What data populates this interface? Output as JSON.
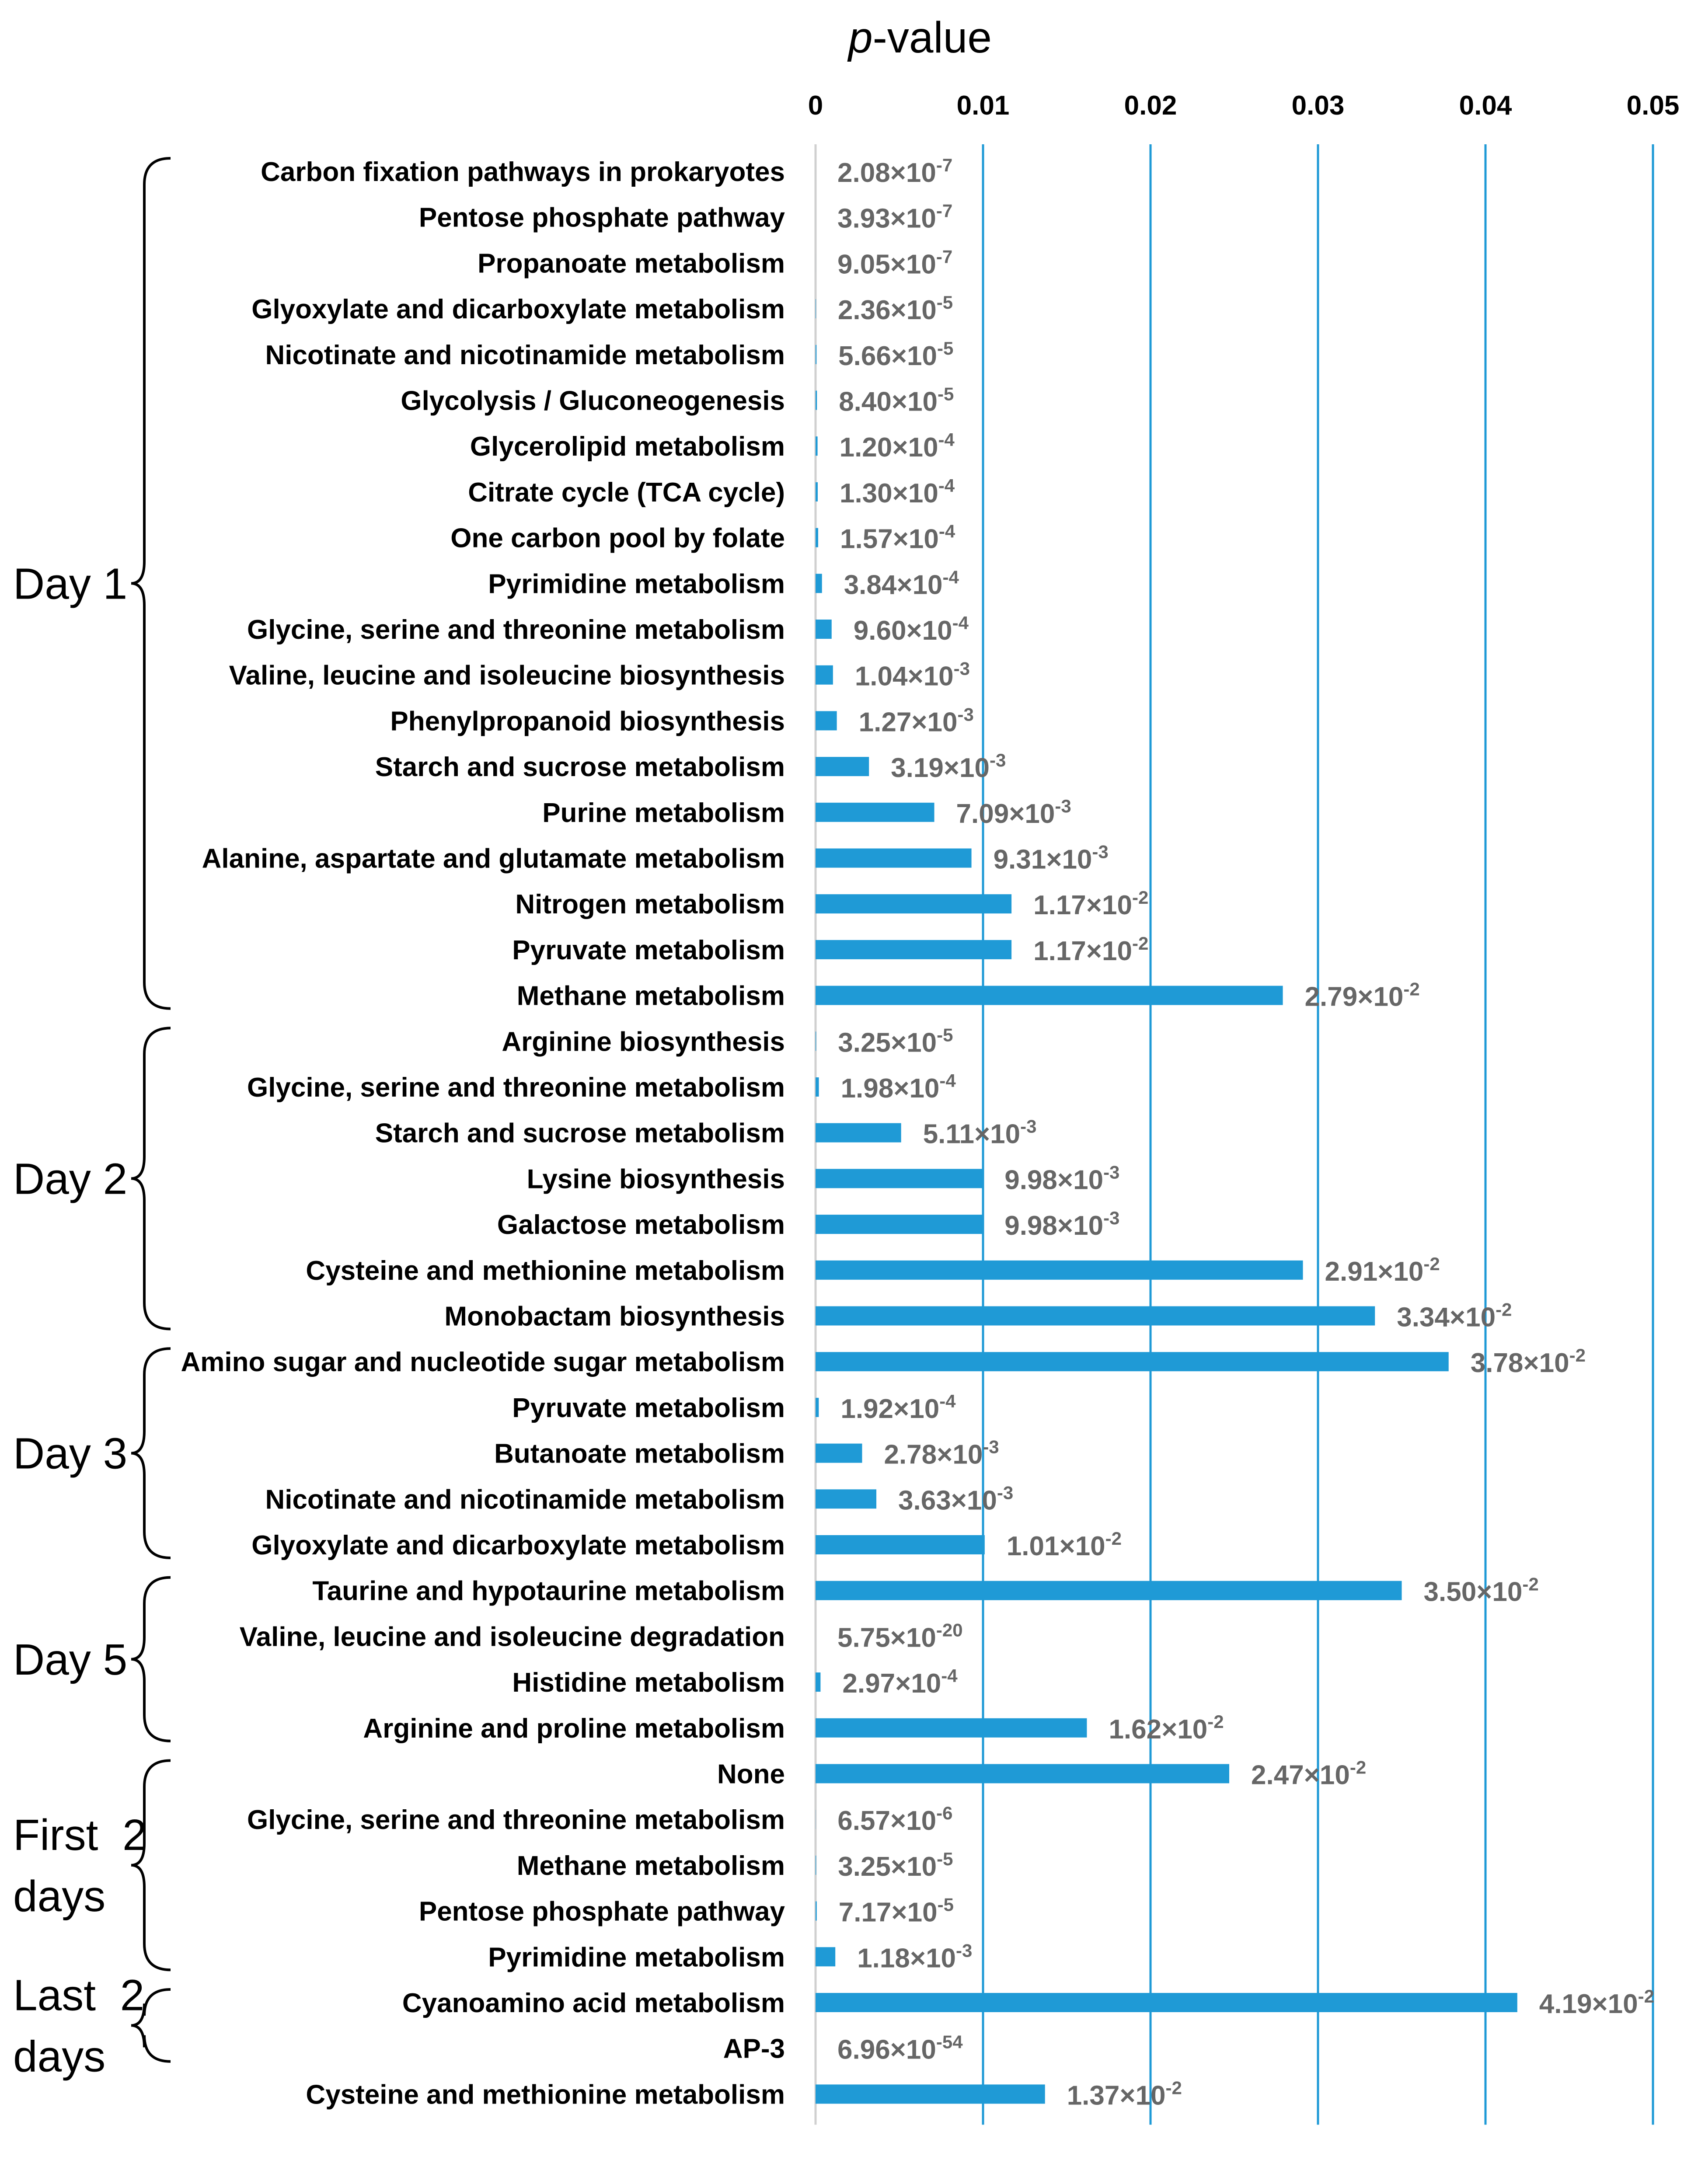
{
  "chart_data": {
    "type": "bar",
    "orientation": "horizontal",
    "title": "",
    "xlabel": "p-value",
    "xlabel_italic": "p",
    "xlabel_rest": "-value",
    "xlim": [
      0,
      0.05
    ],
    "xticks": [
      0,
      0.01,
      0.02,
      0.03,
      0.04,
      0.05
    ],
    "xtick_labels": [
      "0",
      "0.01",
      "0.02",
      "0.03",
      "0.04",
      "0.05"
    ],
    "grid": "vertical",
    "bar_color": "#1f9ad6",
    "grid_color": "#1f9ad6",
    "label_color": "#666666",
    "groups": [
      {
        "label_lines": [
          "Day 1"
        ],
        "start": 0,
        "end": 18
      },
      {
        "label_lines": [
          "Day 2"
        ],
        "start": 19,
        "end": 25
      },
      {
        "label_lines": [
          "Day 3"
        ],
        "start": 26,
        "end": 30
      },
      {
        "label_lines": [
          "Day 5"
        ],
        "start": 31,
        "end": 34
      },
      {
        "label_lines": [
          "First  2",
          "days"
        ],
        "start": 35,
        "end": 39
      },
      {
        "label_lines": [
          "Last  2",
          "days"
        ],
        "start": 40,
        "end": 41
      }
    ],
    "categories": [
      "Carbon fixation pathways in prokaryotes",
      "Pentose phosphate pathway",
      "Propanoate metabolism",
      "Glyoxylate and dicarboxylate metabolism",
      "Nicotinate and nicotinamide metabolism",
      "Glycolysis / Gluconeogenesis",
      "Glycerolipid metabolism",
      "Citrate cycle (TCA cycle)",
      "One carbon pool by folate",
      "Pyrimidine metabolism",
      "Glycine, serine and threonine metabolism",
      "Valine, leucine and isoleucine biosynthesis",
      "Phenylpropanoid biosynthesis",
      "Starch and sucrose metabolism",
      "Purine metabolism",
      "Alanine, aspartate and glutamate metabolism",
      "Nitrogen metabolism",
      "Pyruvate metabolism",
      "Methane metabolism",
      "Arginine biosynthesis",
      "Glycine, serine and threonine metabolism",
      "Starch and sucrose metabolism",
      "Lysine biosynthesis",
      "Galactose metabolism",
      "Cysteine and methionine metabolism",
      "Monobactam biosynthesis",
      "Amino sugar and nucleotide sugar metabolism",
      "Pyruvate metabolism",
      "Butanoate metabolism",
      "Nicotinate and nicotinamide metabolism",
      "Glyoxylate and dicarboxylate metabolism",
      "Taurine and hypotaurine metabolism",
      "Valine, leucine and isoleucine degradation",
      "Histidine metabolism",
      "Arginine and proline metabolism",
      "None",
      "Glycine, serine and threonine metabolism",
      "Methane metabolism",
      "Pentose phosphate pathway",
      "Pyrimidine metabolism",
      "Cyanoamino acid metabolism",
      "AP-3",
      "Cysteine and methionine metabolism"
    ],
    "values": [
      2.08e-07,
      3.93e-07,
      9.05e-07,
      2.36e-05,
      5.66e-05,
      8.4e-05,
      0.00012,
      0.00013,
      0.000157,
      0.000384,
      0.00096,
      0.00104,
      0.00127,
      0.00319,
      0.00709,
      0.00931,
      0.0117,
      0.0117,
      0.0279,
      3.25e-05,
      0.000198,
      0.00511,
      0.00998,
      0.00998,
      0.0291,
      0.0334,
      0.0378,
      0.000192,
      0.00278,
      0.00363,
      0.0101,
      0.035,
      5.75e-20,
      0.000297,
      0.0162,
      0.0247,
      6.57e-06,
      3.25e-05,
      7.17e-05,
      0.00118,
      0.0419,
      6.96e-54,
      0.0137
    ],
    "value_labels": [
      {
        "m": "2.08",
        "e": "-7"
      },
      {
        "m": "3.93",
        "e": "-7"
      },
      {
        "m": "9.05",
        "e": "-7"
      },
      {
        "m": "2.36",
        "e": "-5"
      },
      {
        "m": "5.66",
        "e": "-5"
      },
      {
        "m": "8.40",
        "e": "-5"
      },
      {
        "m": "1.20",
        "e": "-4"
      },
      {
        "m": "1.30",
        "e": "-4"
      },
      {
        "m": "1.57",
        "e": "-4"
      },
      {
        "m": "3.84",
        "e": "-4"
      },
      {
        "m": "9.60",
        "e": "-4"
      },
      {
        "m": "1.04",
        "e": "-3"
      },
      {
        "m": "1.27",
        "e": "-3"
      },
      {
        "m": "3.19",
        "e": "-3"
      },
      {
        "m": "7.09",
        "e": "-3"
      },
      {
        "m": "9.31",
        "e": "-3"
      },
      {
        "m": "1.17",
        "e": "-2"
      },
      {
        "m": "1.17",
        "e": "-2"
      },
      {
        "m": "2.79",
        "e": "-2"
      },
      {
        "m": "3.25",
        "e": "-5"
      },
      {
        "m": "1.98",
        "e": "-4"
      },
      {
        "m": "5.11",
        "e": "-3"
      },
      {
        "m": "9.98",
        "e": "-3"
      },
      {
        "m": "9.98",
        "e": "-3"
      },
      {
        "m": "2.91",
        "e": "-2"
      },
      {
        "m": "3.34",
        "e": "-2"
      },
      {
        "m": "3.78",
        "e": "-2"
      },
      {
        "m": "1.92",
        "e": "-4"
      },
      {
        "m": "2.78",
        "e": "-3"
      },
      {
        "m": "3.63",
        "e": "-3"
      },
      {
        "m": "1.01",
        "e": "-2"
      },
      {
        "m": "3.50",
        "e": "-2"
      },
      {
        "m": "5.75",
        "e": "-20"
      },
      {
        "m": "2.97",
        "e": "-4"
      },
      {
        "m": "1.62",
        "e": "-2"
      },
      {
        "m": "2.47",
        "e": "-2"
      },
      {
        "m": "6.57",
        "e": "-6"
      },
      {
        "m": "3.25",
        "e": "-5"
      },
      {
        "m": "7.17",
        "e": "-5"
      },
      {
        "m": "1.18",
        "e": "-3"
      },
      {
        "m": "4.19",
        "e": "-2"
      },
      {
        "m": "6.96",
        "e": "-54"
      },
      {
        "m": "1.37",
        "e": "-2"
      }
    ],
    "times_glyph": "×",
    "ten": "10"
  }
}
